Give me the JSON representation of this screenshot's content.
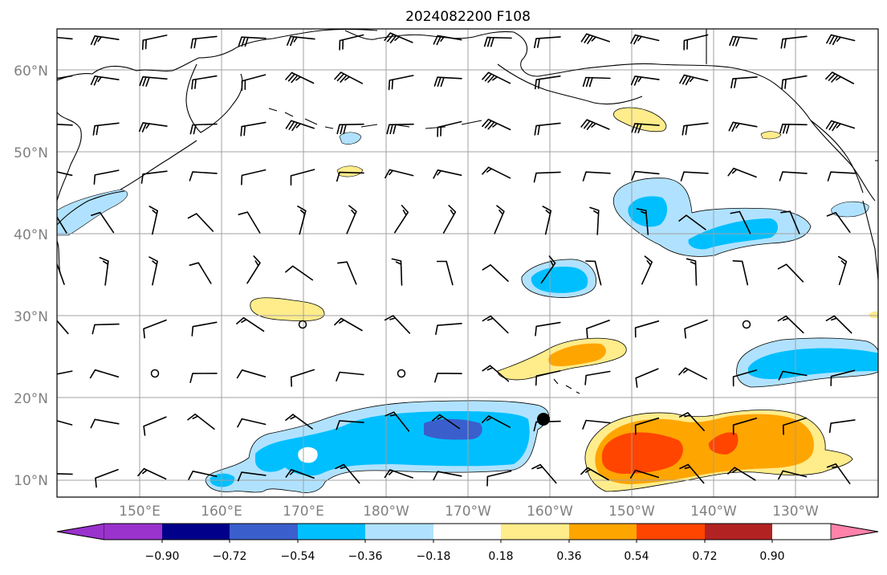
{
  "title": "2024082200 F108",
  "lat_labels": [
    "60°N",
    "50°N",
    "40°N",
    "30°N",
    "20°N",
    "10°N"
  ],
  "lon_labels": [
    "150°E",
    "160°E",
    "170°E",
    "180°W",
    "170°W",
    "160°W",
    "150°W",
    "140°W",
    "130°W"
  ],
  "colorbar": {
    "tick_labels": [
      "−0.90",
      "−0.72",
      "−0.54",
      "−0.36",
      "−0.18",
      "0.18",
      "0.36",
      "0.54",
      "0.72",
      "0.90"
    ],
    "colors": [
      "#9a32cd",
      "#00008b",
      "#3a5fcd",
      "#00bfff",
      "#b0e2ff",
      "#ffffff",
      "#ffec8b",
      "#ffa500",
      "#ff4500",
      "#b22222",
      "#ff82ab"
    ]
  },
  "map": {
    "lon_range": [
      "140°E",
      "120°W"
    ],
    "lat_range": [
      "8°N",
      "65°N"
    ],
    "grid": true,
    "fill_colors": {
      "neg_weak": "#b0e2ff",
      "neg_mod": "#00bfff",
      "neg_strong": "#3a5fcd",
      "pos_weak": "#ffec8b",
      "pos_mod": "#ffa500",
      "pos_strong": "#ff4500"
    },
    "marker": "storm-position-dot"
  }
}
